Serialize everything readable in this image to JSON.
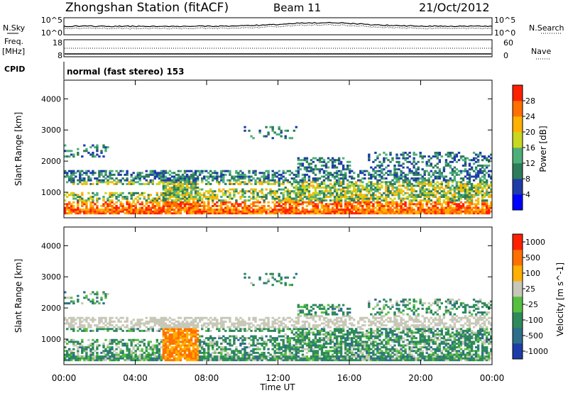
{
  "header": {
    "station": "Zhongshan Station (fitACF)",
    "beam": "Beam 11",
    "date": "21/Oct/2012"
  },
  "top_panels": {
    "nsky_label": "N.Sky",
    "nsky_ticks": [
      "10^5",
      "10^0"
    ],
    "nsearch_label": "N.Search",
    "nsearch_ticks": [
      "10^5",
      "10^0"
    ],
    "freq_label": "Freq.",
    "freq_unit": "[MHz]",
    "freq_ticks": [
      "18",
      "8"
    ],
    "nave_label": "Nave",
    "nave_ticks": [
      "60",
      "0"
    ],
    "cpid_label": "CPID",
    "cpid_text": "normal (fast stereo) 153"
  },
  "chart_data": [
    {
      "type": "heatmap",
      "name": "power",
      "ylabel": "Slant Range [km]",
      "yticks": [
        1000,
        2000,
        3000,
        4000
      ],
      "ylim": [
        180,
        4600
      ],
      "colorbar_label": "Power [dB]",
      "colorbar_ticks": [
        "28",
        "24",
        "20",
        "16",
        "12",
        "8",
        "4"
      ],
      "colorbar_colors": [
        "#0000ff",
        "#1e3ca8",
        "#2e7c5a",
        "#4caf7a",
        "#c8d820",
        "#ffb000",
        "#ff7000",
        "#ff2000"
      ]
    },
    {
      "type": "heatmap",
      "name": "velocity",
      "ylabel": "Slant Range [km]",
      "yticks": [
        1000,
        2000,
        3000,
        4000
      ],
      "ylim": [
        180,
        4600
      ],
      "colorbar_label": "Velocity [m s^-1]",
      "colorbar_ticks": [
        "1000",
        "500",
        "100",
        "25",
        "-25",
        "-100",
        "-500",
        "-1000"
      ],
      "colorbar_colors": [
        "#1e3ca8",
        "#2e6e8a",
        "#2e8a5a",
        "#55c040",
        "#c8c8b8",
        "#ffb000",
        "#ff7000",
        "#ff2000"
      ]
    }
  ],
  "time_axis": {
    "label": "Time UT",
    "ticks": [
      "00:00",
      "04:00",
      "08:00",
      "12:00",
      "16:00",
      "20:00",
      "00:00"
    ]
  }
}
